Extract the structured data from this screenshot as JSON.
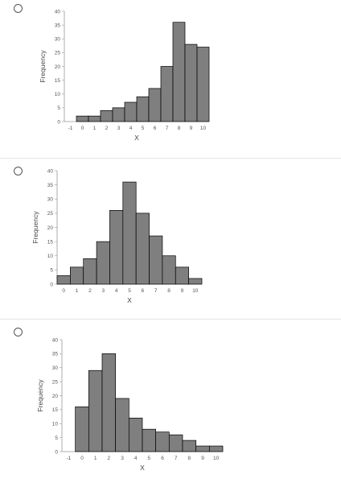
{
  "options": [
    {
      "chart_data": {
        "type": "bar",
        "categories": [
          "0",
          "1",
          "2",
          "3",
          "4",
          "5",
          "6",
          "7",
          "8",
          "9",
          "10"
        ],
        "values": [
          2,
          2,
          4,
          5,
          7,
          9,
          12,
          20,
          36,
          28,
          27
        ],
        "xticks": [
          "-1",
          "0",
          "1",
          "2",
          "3",
          "4",
          "5",
          "6",
          "7",
          "8",
          "9",
          "10"
        ],
        "xlabel": "X",
        "ylabel": "Frequency",
        "ylim": [
          0,
          40
        ],
        "yticks": [
          "0",
          "5",
          "10",
          "15",
          "20",
          "25",
          "30",
          "35",
          "40"
        ],
        "bar_color": "#7f7f7f"
      }
    },
    {
      "chart_data": {
        "type": "bar",
        "categories": [
          "0",
          "1",
          "2",
          "3",
          "4",
          "5",
          "6",
          "7",
          "8",
          "9",
          "10"
        ],
        "values": [
          3,
          6,
          9,
          15,
          26,
          36,
          25,
          17,
          10,
          6,
          2
        ],
        "xticks": [
          "0",
          "1",
          "2",
          "3",
          "4",
          "5",
          "6",
          "7",
          "8",
          "9",
          "10"
        ],
        "xlabel": "X",
        "ylabel": "Frequency",
        "ylim": [
          0,
          40
        ],
        "yticks": [
          "0",
          "5",
          "10",
          "15",
          "20",
          "25",
          "30",
          "35",
          "40"
        ],
        "bar_color": "#7f7f7f"
      }
    },
    {
      "chart_data": {
        "type": "bar",
        "categories": [
          "0",
          "1",
          "2",
          "3",
          "4",
          "5",
          "6",
          "7",
          "8",
          "9",
          "10"
        ],
        "values": [
          16,
          29,
          35,
          19,
          12,
          8,
          7,
          6,
          4,
          2,
          2
        ],
        "xticks": [
          "-1",
          "0",
          "1",
          "2",
          "3",
          "4",
          "5",
          "6",
          "7",
          "8",
          "9",
          "10"
        ],
        "xlabel": "X",
        "ylabel": "Frequency",
        "ylim": [
          0,
          40
        ],
        "yticks": [
          "0",
          "5",
          "10",
          "15",
          "20",
          "25",
          "30",
          "35",
          "40"
        ],
        "bar_color": "#7f7f7f"
      }
    }
  ]
}
